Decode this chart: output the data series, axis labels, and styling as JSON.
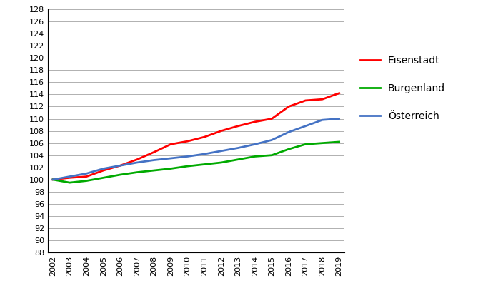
{
  "years": [
    2002,
    2003,
    2004,
    2005,
    2006,
    2007,
    2008,
    2009,
    2010,
    2011,
    2012,
    2013,
    2014,
    2015,
    2016,
    2017,
    2018,
    2019
  ],
  "eisenstadt": [
    100.0,
    100.3,
    100.5,
    101.5,
    102.3,
    103.3,
    104.5,
    105.8,
    106.3,
    107.0,
    108.0,
    108.8,
    109.5,
    110.0,
    112.0,
    113.0,
    113.2,
    114.2
  ],
  "burgenland": [
    100.0,
    99.5,
    99.8,
    100.3,
    100.8,
    101.2,
    101.5,
    101.8,
    102.2,
    102.5,
    102.8,
    103.3,
    103.8,
    104.0,
    105.0,
    105.8,
    106.0,
    106.2
  ],
  "oesterreich": [
    100.0,
    100.5,
    101.0,
    101.8,
    102.3,
    102.8,
    103.2,
    103.5,
    103.8,
    104.2,
    104.7,
    105.2,
    105.8,
    106.5,
    107.8,
    108.8,
    109.8,
    110.0
  ],
  "eisenstadt_color": "#ff0000",
  "burgenland_color": "#00aa00",
  "oesterreich_color": "#4472c4",
  "line_width": 2.0,
  "ylim": [
    88,
    128
  ],
  "ytick_step": 2,
  "legend_labels": [
    "Eisenstadt",
    "Burgenland",
    "Österreich"
  ],
  "background_color": "#ffffff",
  "grid_color": "#b0b0b0"
}
